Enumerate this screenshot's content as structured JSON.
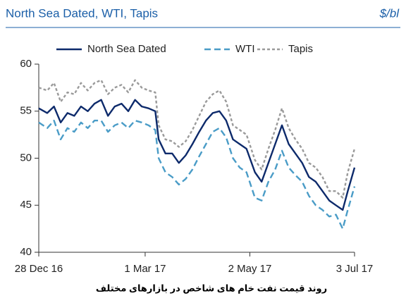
{
  "chart_data": {
    "type": "line",
    "title": "North Sea Dated, WTI, Tapis",
    "unit": "$/bl",
    "caption": "روند قیمت نفت خام های شاخص در بازارهای مختلف",
    "x": [
      "2016-12-28",
      "2017-01-02",
      "2017-01-06",
      "2017-01-10",
      "2017-01-14",
      "2017-01-18",
      "2017-01-22",
      "2017-01-26",
      "2017-01-30",
      "2017-02-03",
      "2017-02-07",
      "2017-02-11",
      "2017-02-15",
      "2017-02-19",
      "2017-02-23",
      "2017-02-27",
      "2017-03-03",
      "2017-03-07",
      "2017-03-09",
      "2017-03-13",
      "2017-03-17",
      "2017-03-21",
      "2017-03-25",
      "2017-03-29",
      "2017-04-02",
      "2017-04-06",
      "2017-04-10",
      "2017-04-14",
      "2017-04-18",
      "2017-04-22",
      "2017-04-26",
      "2017-04-30",
      "2017-05-05",
      "2017-05-09",
      "2017-05-13",
      "2017-05-17",
      "2017-05-21",
      "2017-05-25",
      "2017-05-29",
      "2017-06-02",
      "2017-06-06",
      "2017-06-10",
      "2017-06-14",
      "2017-06-18",
      "2017-06-22",
      "2017-06-26",
      "2017-06-29",
      "2017-07-03"
    ],
    "series": [
      {
        "name": "North Sea Dated",
        "color": "#0d2a6b",
        "dash": "none",
        "values": [
          55.3,
          54.8,
          55.5,
          53.8,
          54.8,
          54.5,
          55.5,
          55.0,
          55.8,
          56.2,
          54.5,
          55.5,
          55.8,
          55.0,
          56.2,
          55.5,
          55.3,
          55.0,
          52.0,
          50.5,
          50.5,
          49.5,
          50.3,
          51.5,
          52.8,
          54.0,
          54.8,
          55.0,
          54.0,
          52.0,
          51.5,
          51.0,
          48.5,
          47.5,
          49.5,
          51.5,
          53.5,
          51.5,
          50.5,
          49.5,
          48.0,
          47.5,
          46.5,
          45.5,
          45.0,
          44.5,
          46.5,
          49.0
        ]
      },
      {
        "name": "WTI",
        "color": "#4a9cc7",
        "dash": "9 5",
        "values": [
          53.8,
          53.2,
          54.0,
          52.0,
          53.2,
          52.8,
          53.8,
          53.2,
          54.0,
          54.0,
          52.8,
          53.5,
          53.8,
          53.2,
          54.0,
          53.8,
          53.5,
          53.0,
          50.0,
          48.5,
          48.0,
          47.2,
          47.8,
          48.8,
          50.2,
          51.5,
          52.8,
          53.2,
          52.2,
          50.0,
          49.0,
          48.5,
          45.8,
          45.5,
          47.5,
          48.8,
          50.8,
          49.0,
          48.2,
          47.5,
          46.0,
          45.0,
          44.5,
          43.8,
          44.0,
          42.5,
          44.5,
          47.0
        ]
      },
      {
        "name": "Tapis",
        "color": "#9a9a9a",
        "dash": "4 3",
        "values": [
          57.5,
          57.2,
          58.0,
          56.0,
          57.0,
          56.8,
          58.0,
          57.2,
          58.0,
          58.3,
          56.8,
          57.5,
          57.8,
          57.0,
          58.3,
          57.5,
          57.2,
          57.0,
          53.5,
          52.0,
          51.8,
          51.2,
          51.8,
          53.0,
          54.5,
          56.0,
          56.8,
          57.2,
          56.0,
          53.5,
          53.0,
          52.5,
          49.8,
          48.8,
          51.0,
          53.0,
          55.3,
          53.2,
          52.0,
          51.0,
          49.5,
          49.0,
          48.0,
          46.5,
          46.5,
          45.8,
          48.5,
          51.0
        ]
      }
    ],
    "xlim": [
      "2016-12-28",
      "2017-07-03"
    ],
    "xticks": [
      {
        "value": "2016-12-28",
        "label": "28 Dec 16"
      },
      {
        "value": "2017-03-01",
        "label": "1 Mar 17"
      },
      {
        "value": "2017-05-02",
        "label": "2 May 17"
      },
      {
        "value": "2017-07-03",
        "label": "3 Jul 17"
      }
    ],
    "ylim": [
      40,
      60
    ],
    "yticks": [
      40,
      45,
      50,
      55,
      60
    ],
    "grid": false,
    "legend": "top"
  }
}
